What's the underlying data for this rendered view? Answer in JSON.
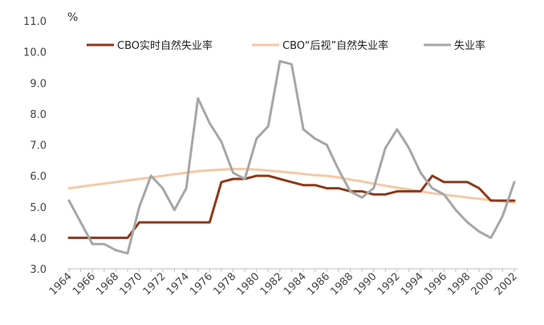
{
  "chart_data": {
    "type": "line",
    "unit": "%",
    "x": [
      1964,
      1965,
      1966,
      1967,
      1968,
      1969,
      1970,
      1971,
      1972,
      1973,
      1974,
      1975,
      1976,
      1977,
      1978,
      1979,
      1980,
      1981,
      1982,
      1983,
      1984,
      1985,
      1986,
      1987,
      1988,
      1989,
      1990,
      1991,
      1992,
      1993,
      1994,
      1995,
      1996,
      1997,
      1998,
      1999,
      2000,
      2001,
      2002
    ],
    "x_tick_labels": [
      "1964",
      "1966",
      "1968",
      "1970",
      "1972",
      "1974",
      "1976",
      "1978",
      "1980",
      "1982",
      "1984",
      "1986",
      "1988",
      "1990",
      "1992",
      "1994",
      "1996",
      "1998",
      "2000",
      "2002"
    ],
    "ylim": [
      3.0,
      11.0
    ],
    "y_tick_labels": [
      "3.0",
      "4.0",
      "5.0",
      "6.0",
      "7.0",
      "8.0",
      "9.0",
      "10.0",
      "11.0"
    ],
    "grid": false,
    "legend_position": "top",
    "series": [
      {
        "name": "CBO实时自然失业率",
        "color": "#8b3a1a",
        "values": [
          4.0,
          4.0,
          4.0,
          4.0,
          4.0,
          4.0,
          4.5,
          4.5,
          4.5,
          4.5,
          4.5,
          4.5,
          4.5,
          5.8,
          5.9,
          5.9,
          6.0,
          6.0,
          5.9,
          5.8,
          5.7,
          5.7,
          5.6,
          5.6,
          5.5,
          5.5,
          5.4,
          5.4,
          5.5,
          5.5,
          5.5,
          6.0,
          5.8,
          5.8,
          5.8,
          5.6,
          5.2,
          5.2,
          5.2
        ]
      },
      {
        "name": "CBO“后视”自然失业率",
        "color": "#f4c9a6",
        "values": [
          5.6,
          5.65,
          5.7,
          5.75,
          5.8,
          5.85,
          5.9,
          5.95,
          6.0,
          6.05,
          6.1,
          6.15,
          6.18,
          6.2,
          6.22,
          6.22,
          6.2,
          6.17,
          6.14,
          6.1,
          6.06,
          6.02,
          6.0,
          5.95,
          5.88,
          5.82,
          5.75,
          5.68,
          5.62,
          5.56,
          5.5,
          5.44,
          5.39,
          5.35,
          5.3,
          5.26,
          5.22,
          5.18,
          5.14
        ]
      },
      {
        "name": "失业率",
        "color": "#a6a6a6",
        "values": [
          5.2,
          4.5,
          3.8,
          3.8,
          3.6,
          3.5,
          5.0,
          6.0,
          5.6,
          4.9,
          5.6,
          8.5,
          7.7,
          7.1,
          6.1,
          5.9,
          7.2,
          7.6,
          9.7,
          9.6,
          7.5,
          7.2,
          7.0,
          6.2,
          5.5,
          5.3,
          5.6,
          6.9,
          7.5,
          6.9,
          6.1,
          5.6,
          5.4,
          4.9,
          4.5,
          4.2,
          4.0,
          4.7,
          5.8
        ]
      }
    ]
  }
}
